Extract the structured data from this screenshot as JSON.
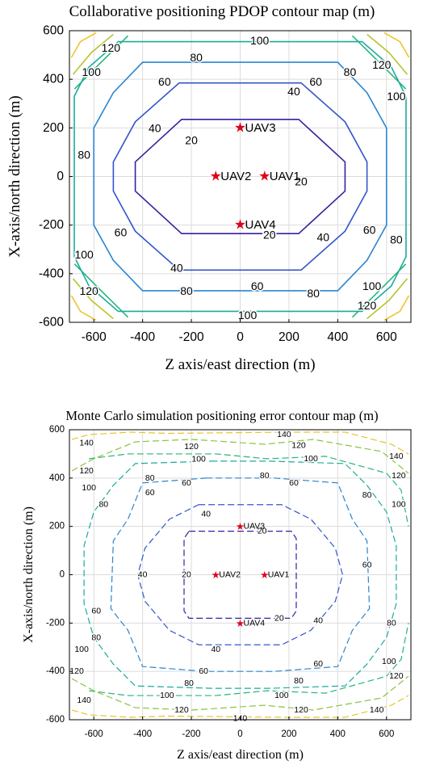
{
  "chart_data": [
    {
      "type": "contour",
      "title": "Collaborative positioning PDOP contour map (m)",
      "xlabel": "Z axis/east direction (m)",
      "ylabel": "X-axis/north direction (m)",
      "xlim": [
        -700,
        700
      ],
      "ylim": [
        -600,
        600
      ],
      "xticks": [
        -600,
        -400,
        -200,
        0,
        200,
        400,
        600
      ],
      "yticks": [
        -600,
        -400,
        -200,
        0,
        200,
        400,
        600
      ],
      "grid": true,
      "line_style": "solid",
      "contour_levels": [
        {
          "level": 20,
          "color": "#3a1fa0",
          "points": [
            [
              -240,
              235
            ],
            [
              240,
              235
            ],
            [
              430,
              60
            ],
            [
              430,
              -60
            ],
            [
              240,
              -235
            ],
            [
              -240,
              -235
            ],
            [
              -430,
              -60
            ],
            [
              -430,
              60
            ]
          ]
        },
        {
          "level": 40,
          "color": "#3355cc",
          "points": [
            [
              -250,
              385
            ],
            [
              250,
              385
            ],
            [
              430,
              225
            ],
            [
              520,
              60
            ],
            [
              520,
              -60
            ],
            [
              430,
              -225
            ],
            [
              250,
              -385
            ],
            [
              -250,
              -385
            ],
            [
              -430,
              -225
            ],
            [
              -520,
              -60
            ],
            [
              -520,
              60
            ],
            [
              -430,
              225
            ]
          ]
        },
        {
          "level": 60,
          "color": "#2a85d0",
          "points": [
            [
              -400,
              470
            ],
            [
              400,
              470
            ],
            [
              520,
              345
            ],
            [
              600,
              200
            ],
            [
              600,
              -200
            ],
            [
              520,
              -345
            ],
            [
              400,
              -470
            ],
            [
              -400,
              -470
            ],
            [
              -520,
              -345
            ],
            [
              -600,
              -200
            ],
            [
              -600,
              200
            ],
            [
              -520,
              345
            ]
          ]
        },
        {
          "level": 80,
          "color": "#1cab9e",
          "points": [
            [
              -500,
              555
            ],
            [
              500,
              555
            ],
            [
              620,
              450
            ],
            [
              680,
              330
            ],
            [
              680,
              -330
            ],
            [
              620,
              -450
            ],
            [
              500,
              -555
            ],
            [
              -500,
              -555
            ],
            [
              -620,
              -450
            ],
            [
              -680,
              -330
            ],
            [
              -680,
              330
            ],
            [
              -620,
              450
            ]
          ]
        }
      ],
      "corner_levels": [
        {
          "level": 100,
          "color": "#28b57a"
        },
        {
          "level": 120,
          "color": "#b8c42a"
        },
        {
          "level": 140,
          "color": "#f2c12a"
        }
      ],
      "label_positions": [
        {
          "text": "100",
          "x": 80,
          "y": 560
        },
        {
          "text": "120",
          "x": -530,
          "y": 530
        },
        {
          "text": "100",
          "x": -610,
          "y": 430
        },
        {
          "text": "80",
          "x": -180,
          "y": 490
        },
        {
          "text": "60",
          "x": -310,
          "y": 390
        },
        {
          "text": "120",
          "x": 580,
          "y": 460
        },
        {
          "text": "80",
          "x": 450,
          "y": 430
        },
        {
          "text": "100",
          "x": 640,
          "y": 330
        },
        {
          "text": "60",
          "x": 310,
          "y": 390
        },
        {
          "text": "40",
          "x": 220,
          "y": 350
        },
        {
          "text": "40",
          "x": -350,
          "y": 200
        },
        {
          "text": "20",
          "x": -200,
          "y": 150
        },
        {
          "text": "80",
          "x": -640,
          "y": 90
        },
        {
          "text": "20",
          "x": 250,
          "y": -20
        },
        {
          "text": "60",
          "x": -490,
          "y": -230
        },
        {
          "text": "40",
          "x": 340,
          "y": -250
        },
        {
          "text": "60",
          "x": 530,
          "y": -220
        },
        {
          "text": "80",
          "x": 640,
          "y": -260
        },
        {
          "text": "20",
          "x": 120,
          "y": -240
        },
        {
          "text": "100",
          "x": -640,
          "y": -320
        },
        {
          "text": "40",
          "x": -260,
          "y": -375
        },
        {
          "text": "120",
          "x": -620,
          "y": -470
        },
        {
          "text": "80",
          "x": -220,
          "y": -470
        },
        {
          "text": "60",
          "x": 70,
          "y": -450
        },
        {
          "text": "80",
          "x": 300,
          "y": -480
        },
        {
          "text": "100",
          "x": 540,
          "y": -450
        },
        {
          "text": "120",
          "x": 520,
          "y": -530
        },
        {
          "text": "100",
          "x": 30,
          "y": -570
        }
      ],
      "markers": [
        {
          "label": "UAV3",
          "x": 0,
          "y": 200
        },
        {
          "label": "UAV2",
          "x": -100,
          "y": 0
        },
        {
          "label": "UAV1",
          "x": 100,
          "y": 0
        },
        {
          "label": "UAV4",
          "x": 0,
          "y": -200
        }
      ]
    },
    {
      "type": "contour",
      "title": "Monte Carlo simulation positioning error contour map (m)",
      "xlabel": "Z axis/east direction (m)",
      "ylabel": "X-axis/north direction (m)",
      "xlim": [
        -700,
        700
      ],
      "ylim": [
        -600,
        600
      ],
      "xticks": [
        -600,
        -400,
        -200,
        0,
        200,
        400,
        600
      ],
      "yticks": [
        -600,
        -400,
        -200,
        0,
        200,
        400,
        600
      ],
      "grid": true,
      "line_style": "dashed",
      "contour_levels": [
        {
          "level": 20,
          "color": "#3a1fa0",
          "points": [
            [
              -210,
              180
            ],
            [
              210,
              180
            ],
            [
              230,
              150
            ],
            [
              230,
              -150
            ],
            [
              210,
              -180
            ],
            [
              -210,
              -180
            ],
            [
              -230,
              -150
            ],
            [
              -230,
              150
            ]
          ]
        },
        {
          "level": 40,
          "color": "#3355cc",
          "points": [
            [
              -170,
              290
            ],
            [
              170,
              290
            ],
            [
              290,
              230
            ],
            [
              390,
              110
            ],
            [
              420,
              0
            ],
            [
              390,
              -110
            ],
            [
              290,
              -230
            ],
            [
              170,
              -290
            ],
            [
              -170,
              -290
            ],
            [
              -290,
              -230
            ],
            [
              -390,
              -110
            ],
            [
              -420,
              0
            ],
            [
              -390,
              110
            ],
            [
              -290,
              230
            ]
          ]
        },
        {
          "level": 60,
          "color": "#2a85d0",
          "points": [
            [
              -140,
              400
            ],
            [
              140,
              400
            ],
            [
              400,
              380
            ],
            [
              460,
              230
            ],
            [
              520,
              140
            ],
            [
              530,
              -140
            ],
            [
              460,
              -230
            ],
            [
              400,
              -380
            ],
            [
              140,
              -400
            ],
            [
              -140,
              -400
            ],
            [
              -400,
              -380
            ],
            [
              -460,
              -230
            ],
            [
              -530,
              -140
            ],
            [
              -520,
              140
            ],
            [
              -460,
              230
            ],
            [
              -400,
              380
            ]
          ]
        },
        {
          "level": 80,
          "color": "#1cab9e",
          "points": [
            [
              -120,
              470
            ],
            [
              120,
              470
            ],
            [
              430,
              460
            ],
            [
              520,
              370
            ],
            [
              600,
              260
            ],
            [
              640,
              120
            ],
            [
              640,
              -120
            ],
            [
              600,
              -260
            ],
            [
              520,
              -370
            ],
            [
              430,
              -460
            ],
            [
              120,
              -470
            ],
            [
              -120,
              -470
            ],
            [
              -430,
              -460
            ],
            [
              -520,
              -370
            ],
            [
              -600,
              -260
            ],
            [
              -640,
              -120
            ],
            [
              -640,
              120
            ],
            [
              -600,
              260
            ],
            [
              -520,
              370
            ],
            [
              -430,
              460
            ]
          ]
        },
        {
          "level": 100,
          "color": "#28b57a",
          "points": [
            [
              -620,
              480
            ],
            [
              -460,
              500
            ],
            [
              -100,
              500
            ],
            [
              110,
              480
            ],
            [
              350,
              490
            ],
            [
              600,
              420
            ],
            [
              660,
              350
            ],
            [
              690,
              200
            ]
          ]
        },
        {
          "level": 120,
          "color": "#88c43a",
          "points": [
            [
              -690,
              430
            ],
            [
              -600,
              480
            ],
            [
              -430,
              550
            ],
            [
              -200,
              560
            ],
            [
              100,
              540
            ],
            [
              300,
              560
            ],
            [
              580,
              510
            ],
            [
              690,
              420
            ]
          ]
        },
        {
          "level": 140,
          "color": "#e8c42a",
          "points": [
            [
              -690,
              560
            ],
            [
              -620,
              580
            ],
            [
              -450,
              590
            ],
            [
              -300,
              585
            ],
            [
              200,
              590
            ],
            [
              430,
              590
            ],
            [
              620,
              540
            ],
            [
              690,
              500
            ]
          ]
        }
      ],
      "label_positions": [
        {
          "text": "140",
          "x": -630,
          "y": 545
        },
        {
          "text": "120",
          "x": -200,
          "y": 530
        },
        {
          "text": "140",
          "x": 180,
          "y": 580
        },
        {
          "text": "120",
          "x": 240,
          "y": 535
        },
        {
          "text": "100",
          "x": -170,
          "y": 478
        },
        {
          "text": "100",
          "x": 290,
          "y": 480
        },
        {
          "text": "140",
          "x": 640,
          "y": 490
        },
        {
          "text": "120",
          "x": -630,
          "y": 430
        },
        {
          "text": "80",
          "x": -370,
          "y": 400
        },
        {
          "text": "80",
          "x": 100,
          "y": 410
        },
        {
          "text": "120",
          "x": 650,
          "y": 410
        },
        {
          "text": "100",
          "x": -620,
          "y": 360
        },
        {
          "text": "60",
          "x": -370,
          "y": 340
        },
        {
          "text": "60",
          "x": -220,
          "y": 380
        },
        {
          "text": "60",
          "x": 220,
          "y": 380
        },
        {
          "text": "80",
          "x": -560,
          "y": 290
        },
        {
          "text": "40",
          "x": -140,
          "y": 250
        },
        {
          "text": "100",
          "x": 650,
          "y": 290
        },
        {
          "text": "80",
          "x": 520,
          "y": 330
        },
        {
          "text": "20",
          "x": 90,
          "y": 180
        },
        {
          "text": "40",
          "x": -400,
          "y": 0
        },
        {
          "text": "20",
          "x": -220,
          "y": 0
        },
        {
          "text": "60",
          "x": 520,
          "y": 40
        },
        {
          "text": "60",
          "x": -590,
          "y": -150
        },
        {
          "text": "40",
          "x": 320,
          "y": -190
        },
        {
          "text": "80",
          "x": 620,
          "y": -200
        },
        {
          "text": "20",
          "x": 160,
          "y": -180
        },
        {
          "text": "80",
          "x": -590,
          "y": -260
        },
        {
          "text": "100",
          "x": -650,
          "y": -310
        },
        {
          "text": "40",
          "x": -100,
          "y": -310
        },
        {
          "text": "60",
          "x": 320,
          "y": -370
        },
        {
          "text": "100",
          "x": 610,
          "y": -360
        },
        {
          "text": "120",
          "x": -670,
          "y": -400
        },
        {
          "text": "60",
          "x": -150,
          "y": -400
        },
        {
          "text": "80",
          "x": -210,
          "y": -450
        },
        {
          "text": "80",
          "x": 240,
          "y": -440
        },
        {
          "text": "120",
          "x": 640,
          "y": -420
        },
        {
          "text": "140",
          "x": -640,
          "y": -520
        },
        {
          "text": "100",
          "x": -300,
          "y": -500
        },
        {
          "text": "100",
          "x": 170,
          "y": -500
        },
        {
          "text": "120",
          "x": -240,
          "y": -560
        },
        {
          "text": "120",
          "x": 250,
          "y": -560
        },
        {
          "text": "140",
          "x": 0,
          "y": -595
        },
        {
          "text": "140",
          "x": 560,
          "y": -560
        }
      ],
      "markers": [
        {
          "label": "UAV3",
          "x": 0,
          "y": 200
        },
        {
          "label": "UAV2",
          "x": -100,
          "y": 0
        },
        {
          "label": "UAV1",
          "x": 100,
          "y": 0
        },
        {
          "label": "UAV4",
          "x": 0,
          "y": -200
        }
      ]
    }
  ]
}
